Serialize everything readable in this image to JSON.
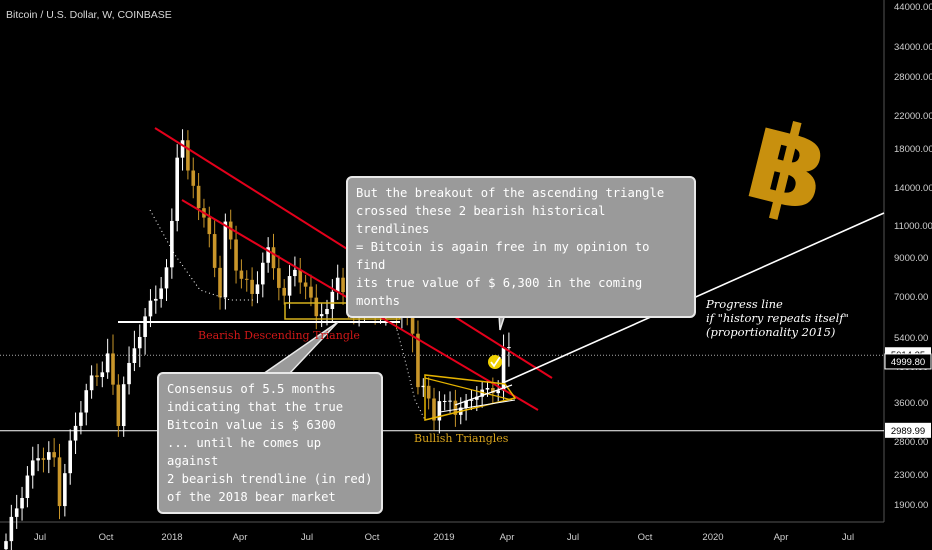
{
  "title": "Bitcoin / U.S. Dollar, W, COINBASE",
  "chart_data": {
    "type": "candlestick",
    "symbol": "Bitcoin / U.S. Dollar",
    "interval": "W",
    "exchange": "COINBASE",
    "y_scale": "log",
    "y_ticks": [
      "44000.00",
      "34000.00",
      "28000.00",
      "22000.00",
      "18000.00",
      "14000.00",
      "11000.00",
      "9000.00",
      "7000.00",
      "5400.00",
      "4800.00",
      "3600.00",
      "2800.00",
      "2300.00",
      "1900.00"
    ],
    "y_price_labels": [
      "5014.25",
      "4999.80",
      "2989.99"
    ],
    "x_ticks": [
      "Jul",
      "Oct",
      "2018",
      "Apr",
      "Jul",
      "Oct",
      "2019",
      "Apr",
      "Jul",
      "Oct",
      "2020",
      "Apr",
      "Jul"
    ],
    "annotations": {
      "breakout_callout": "But the breakout of the ascending triangle\ncrossed these 2 bearish historical trendlines\n= Bitcoin is again free in my opinion to find\nits true value of $ 6,300 in the coming months",
      "consensus_callout": "Consensus of 5.5 months\nindicating that the true\nBitcoin value is $ 6300\n... until he comes up against\n2 bearish trendline (in red)\nof the 2018 bear market",
      "progress_note": "Progress line\nif \"history repeats itself\"\n(proportionality 2015)",
      "bearish_label": "Bearish Descending Triangle",
      "bullish_label": "Bullish Triangles"
    },
    "colors": {
      "up": "#ffffff",
      "down": "#c9962a",
      "trendline": "#e3001b",
      "logo": "#c8900e",
      "triangle": "#e6b400"
    }
  }
}
